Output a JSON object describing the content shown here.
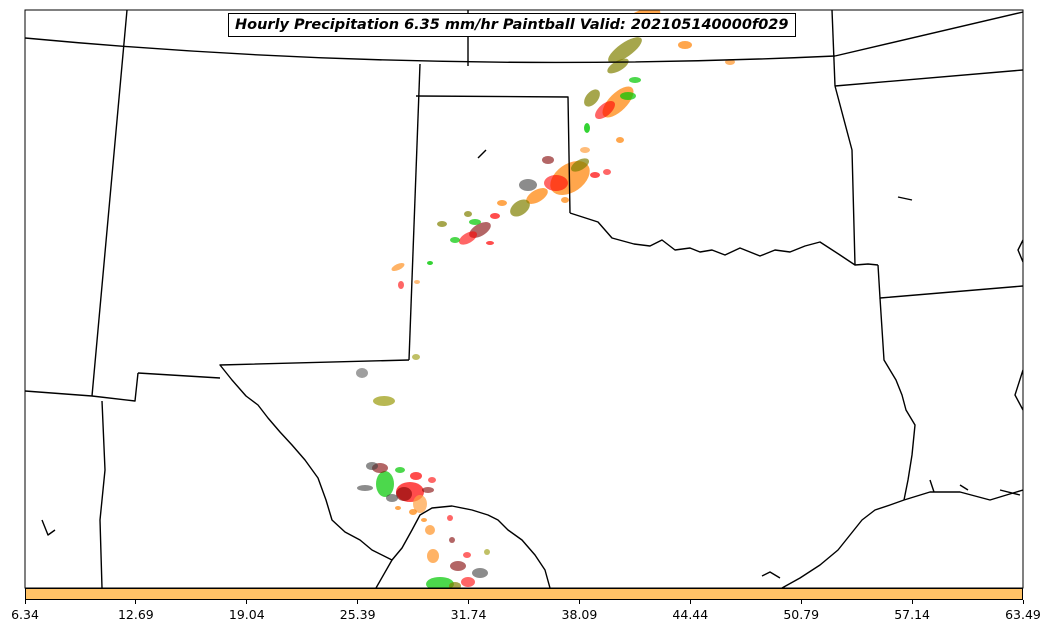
{
  "title": "Hourly Precipitation 6.35 mm/hr Paintball Valid: 202105140000f029",
  "colorbar": {
    "color": "#ffc266",
    "ticks": [
      "6.34",
      "12.69",
      "19.04",
      "25.39",
      "31.74",
      "38.09",
      "44.44",
      "50.79",
      "57.14",
      "63.49"
    ]
  },
  "map": {
    "region": "Southern Plains, United States",
    "boundaries": "state borders",
    "member_colors": [
      "#ff0000",
      "#ff8000",
      "#808000",
      "#00c800",
      "#ffa040",
      "#800000",
      "#404040",
      "#b0b040"
    ]
  }
}
